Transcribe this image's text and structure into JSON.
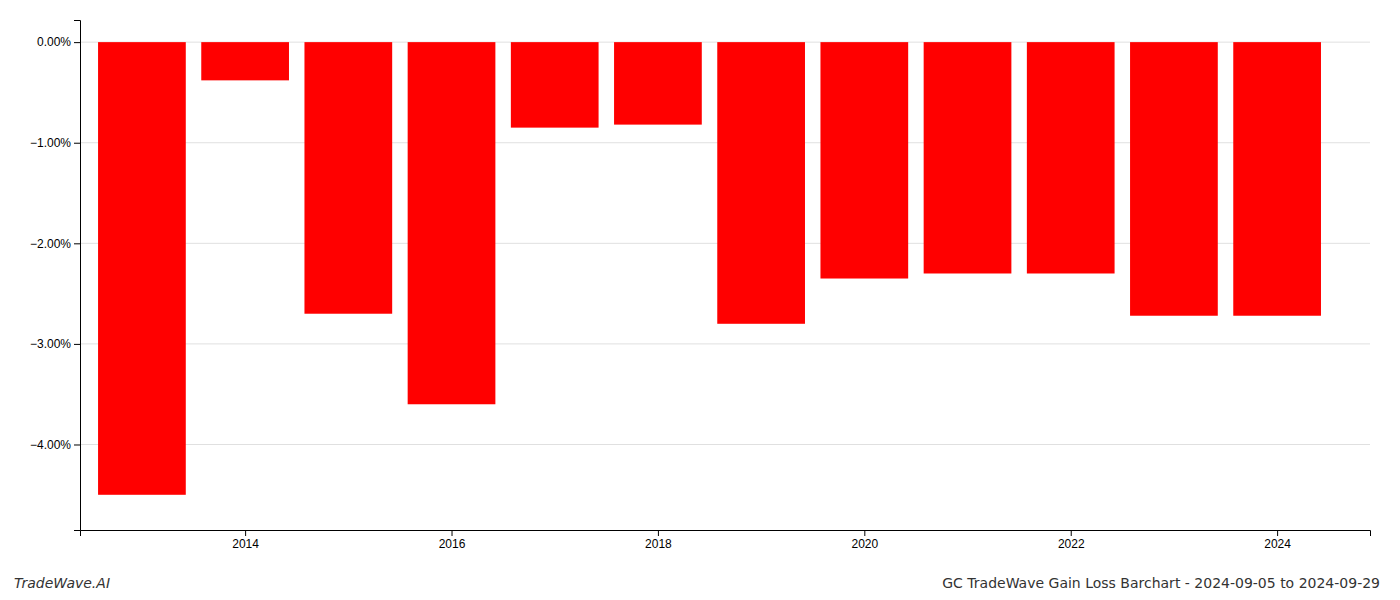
{
  "chart_data": {
    "type": "bar",
    "title": "GC TradeWave Gain Loss Barchart - 2024-09-05 to 2024-09-29",
    "annotations": [
      "TradeWave.AI"
    ],
    "x": [
      2013,
      2014,
      2015,
      2016,
      2017,
      2018,
      2019,
      2020,
      2021,
      2022,
      2023,
      2024
    ],
    "values": [
      -4.5,
      -0.38,
      -2.7,
      -3.6,
      -0.85,
      -0.82,
      -2.8,
      -2.35,
      -2.3,
      -2.3,
      -2.72,
      -2.72
    ],
    "color": "#ff0000",
    "xlim": [
      2012.4,
      2024.9
    ],
    "xticks": [
      2014,
      2016,
      2018,
      2020,
      2022,
      2024
    ],
    "ylim": [
      -4.85,
      0.22
    ],
    "yticks": [
      {
        "value": 0.0,
        "label": "0.00%"
      },
      {
        "value": -1.0,
        "label": "−1.00%"
      },
      {
        "value": -2.0,
        "label": "−2.00%"
      },
      {
        "value": -3.0,
        "label": "−3.00%"
      },
      {
        "value": -4.0,
        "label": "−4.00%"
      }
    ],
    "grid": true
  }
}
